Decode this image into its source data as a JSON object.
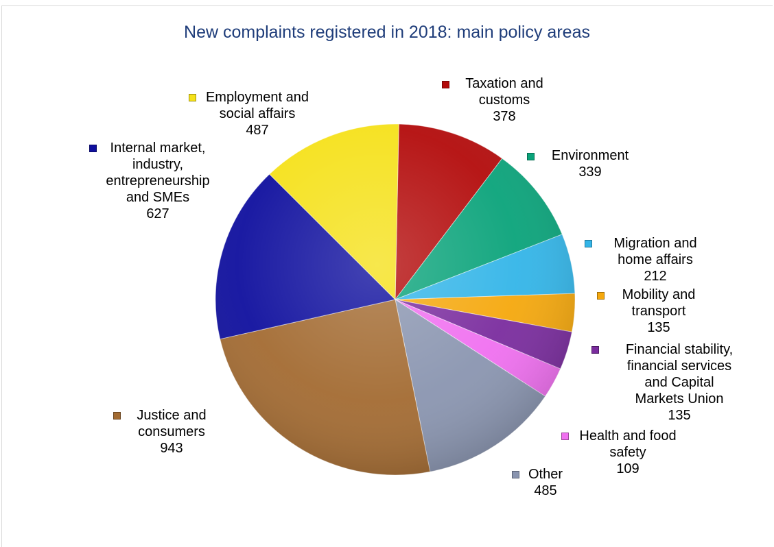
{
  "chart_data": {
    "type": "pie",
    "title": "New complaints registered in 2018: main policy areas",
    "slices": [
      {
        "label": "Taxation and customs",
        "value": 378,
        "color": "#b30b0b"
      },
      {
        "label": "Environment",
        "value": 339,
        "color": "#0aa37a"
      },
      {
        "label": "Migration and home affairs",
        "value": 212,
        "color": "#33b5e8"
      },
      {
        "label": "Mobility and transport",
        "value": 135,
        "color": "#f5a80d"
      },
      {
        "label": "Financial stability, financial services and Capital Markets Union",
        "value": 135,
        "color": "#7a2c9e"
      },
      {
        "label": "Health and food safety",
        "value": 109,
        "color": "#f070f0"
      },
      {
        "label": "Other",
        "value": 485,
        "color": "#8a95b0"
      },
      {
        "label": "Justice and consumers",
        "value": 943,
        "color": "#a36b32"
      },
      {
        "label": "Internal market, industry, entrepreneurship and SMEs",
        "value": 627,
        "color": "#0f0f9e"
      },
      {
        "label": "Employment and social affairs",
        "value": 487,
        "color": "#f5e11a"
      }
    ],
    "legend": "data labels beside slices"
  }
}
